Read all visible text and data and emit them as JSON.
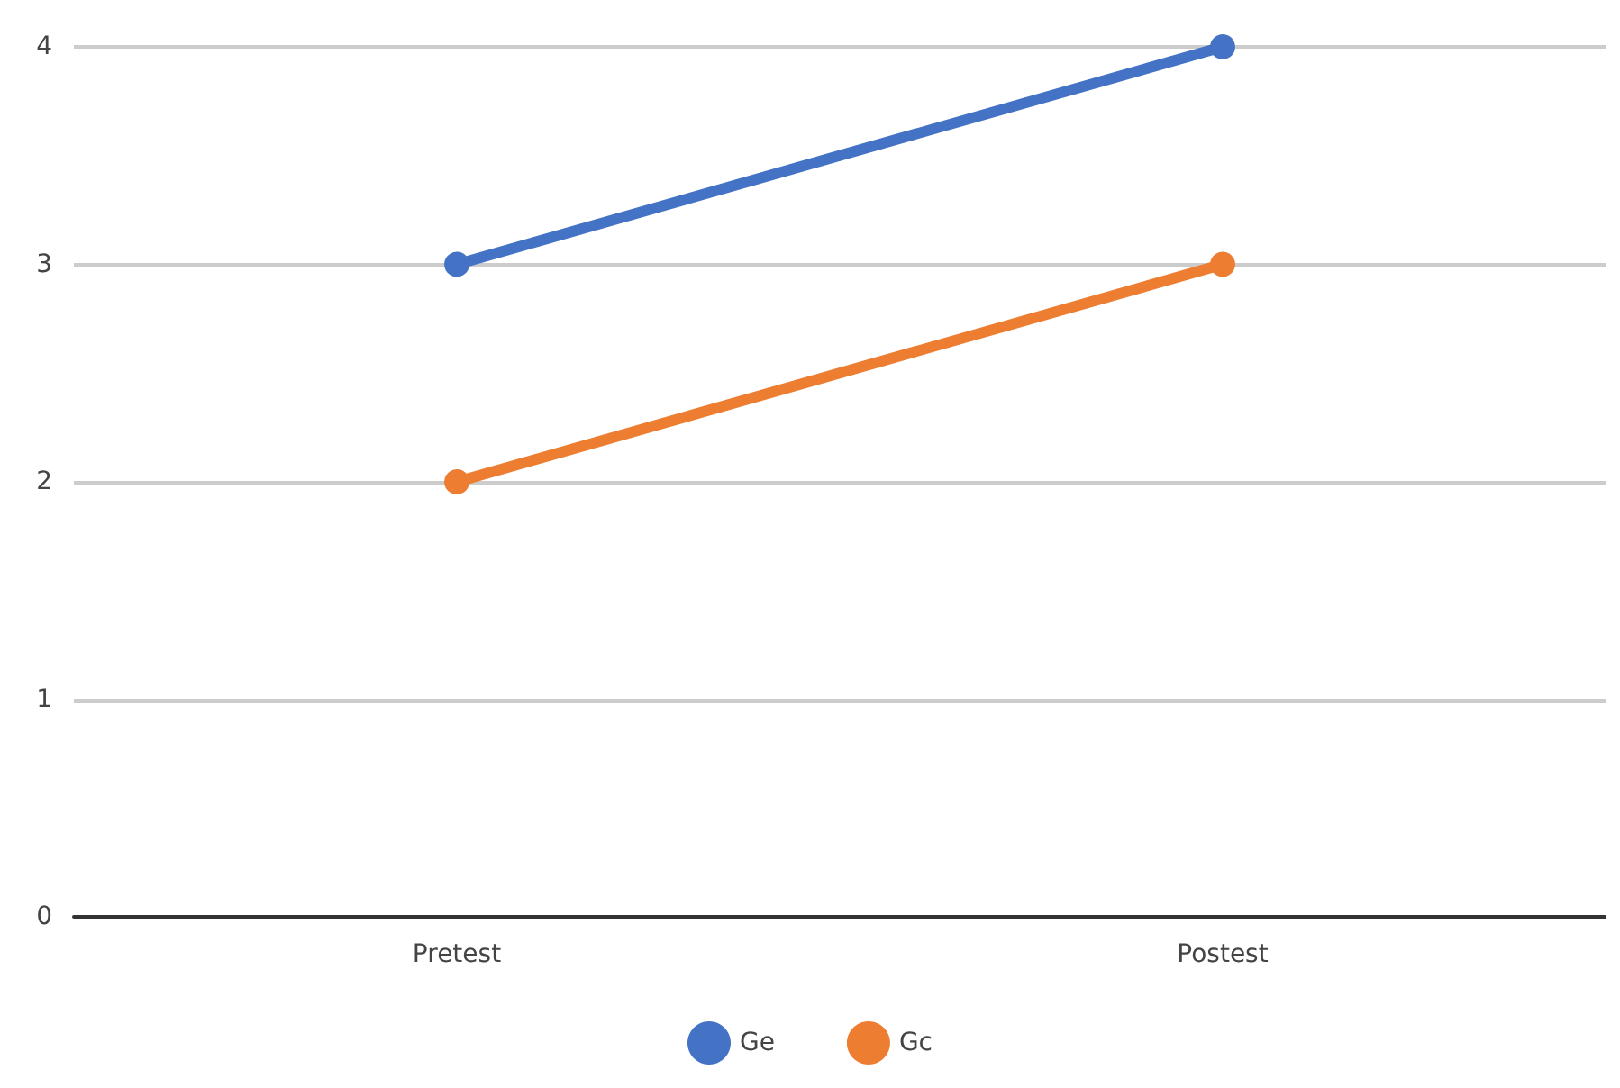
{
  "chart_data": {
    "type": "line",
    "categories": [
      "Pretest",
      "Postest"
    ],
    "series": [
      {
        "name": "Ge",
        "color": "#4472c4",
        "values": [
          3,
          4
        ]
      },
      {
        "name": "Gc",
        "color": "#ed7d31",
        "values": [
          2,
          3
        ]
      }
    ],
    "ylim": [
      0,
      4
    ],
    "yticks": [
      0,
      1,
      2,
      3,
      4
    ],
    "grid": "y",
    "legend": "bottom",
    "marker": "circle",
    "line_style": "solid"
  }
}
